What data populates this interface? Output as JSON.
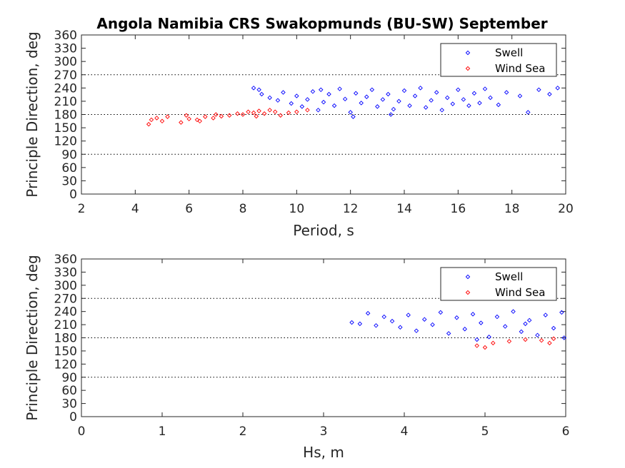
{
  "chart_data": [
    {
      "type": "scatter",
      "title": "Angola Namibia CRS Swakopmunds (BU-SW) September",
      "xlabel": "Period, s",
      "ylabel": "Principle Direction, deg",
      "xlim": [
        2,
        20
      ],
      "ylim": [
        0,
        360
      ],
      "xticks": [
        2,
        4,
        6,
        8,
        10,
        12,
        14,
        16,
        18,
        20
      ],
      "yticks": [
        0,
        30,
        60,
        90,
        120,
        150,
        180,
        210,
        240,
        270,
        300,
        330,
        360
      ],
      "reference_lines": [
        90,
        180,
        270
      ],
      "legend": {
        "position": "top-right",
        "entries": [
          "Swell",
          "Wind Sea"
        ]
      },
      "series": [
        {
          "name": "Swell",
          "color": "#0000ff",
          "marker": "diamond",
          "points": [
            [
              8.4,
              240
            ],
            [
              8.6,
              236
            ],
            [
              8.7,
              226
            ],
            [
              9.0,
              218
            ],
            [
              9.3,
              212
            ],
            [
              9.5,
              230
            ],
            [
              9.8,
              205
            ],
            [
              10.0,
              222
            ],
            [
              10.2,
              198
            ],
            [
              10.4,
              214
            ],
            [
              10.6,
              232
            ],
            [
              10.8,
              190
            ],
            [
              11.0,
              208
            ],
            [
              11.2,
              226
            ],
            [
              11.4,
              200
            ],
            [
              11.6,
              238
            ],
            [
              11.8,
              215
            ],
            [
              12.0,
              185
            ],
            [
              12.2,
              228
            ],
            [
              12.4,
              206
            ],
            [
              12.6,
              220
            ],
            [
              12.8,
              236
            ],
            [
              13.0,
              198
            ],
            [
              13.2,
              214
            ],
            [
              13.4,
              226
            ],
            [
              13.6,
              192
            ],
            [
              13.8,
              210
            ],
            [
              14.0,
              234
            ],
            [
              14.2,
              200
            ],
            [
              14.4,
              222
            ],
            [
              14.6,
              240
            ],
            [
              14.8,
              196
            ],
            [
              15.0,
              212
            ],
            [
              15.2,
              230
            ],
            [
              15.4,
              190
            ],
            [
              15.6,
              218
            ],
            [
              15.8,
              204
            ],
            [
              16.0,
              236
            ],
            [
              16.2,
              214
            ],
            [
              16.4,
              200
            ],
            [
              16.6,
              228
            ],
            [
              16.8,
              206
            ],
            [
              17.0,
              238
            ],
            [
              17.2,
              218
            ],
            [
              17.5,
              202
            ],
            [
              17.8,
              230
            ],
            [
              18.3,
              222
            ],
            [
              18.6,
              185
            ],
            [
              19.0,
              236
            ],
            [
              19.4,
              226
            ],
            [
              19.7,
              240
            ],
            [
              12.1,
              175
            ],
            [
              13.5,
              180
            ],
            [
              10.9,
              236
            ]
          ]
        },
        {
          "name": "Wind Sea",
          "color": "#ff0000",
          "marker": "diamond",
          "points": [
            [
              4.5,
              158
            ],
            [
              4.6,
              168
            ],
            [
              4.8,
              172
            ],
            [
              5.0,
              165
            ],
            [
              5.2,
              175
            ],
            [
              5.7,
              162
            ],
            [
              6.0,
              170
            ],
            [
              6.3,
              168
            ],
            [
              6.6,
              175
            ],
            [
              6.9,
              172
            ],
            [
              7.2,
              176
            ],
            [
              7.5,
              178
            ],
            [
              7.8,
              182
            ],
            [
              8.0,
              180
            ],
            [
              8.2,
              186
            ],
            [
              8.4,
              184
            ],
            [
              8.6,
              188
            ],
            [
              8.8,
              182
            ],
            [
              9.0,
              190
            ],
            [
              9.2,
              186
            ],
            [
              9.4,
              178
            ],
            [
              9.7,
              184
            ],
            [
              10.0,
              186
            ],
            [
              10.4,
              190
            ],
            [
              6.4,
              165
            ],
            [
              7.0,
              180
            ],
            [
              8.5,
              176
            ],
            [
              5.9,
              178
            ]
          ]
        }
      ]
    },
    {
      "type": "scatter",
      "title": "",
      "xlabel": "Hs, m",
      "ylabel": "Principle Direction, deg",
      "xlim": [
        0,
        6
      ],
      "ylim": [
        0,
        360
      ],
      "xticks": [
        0,
        1,
        2,
        3,
        4,
        5,
        6
      ],
      "yticks": [
        0,
        30,
        60,
        90,
        120,
        150,
        180,
        210,
        240,
        270,
        300,
        330,
        360
      ],
      "reference_lines": [
        90,
        180,
        270
      ],
      "legend": {
        "position": "top-right",
        "entries": [
          "Swell",
          "Wind Sea"
        ]
      },
      "series": [
        {
          "name": "Swell",
          "color": "#0000ff",
          "marker": "diamond",
          "points": [
            [
              3.35,
              215
            ],
            [
              3.45,
              212
            ],
            [
              3.55,
              236
            ],
            [
              3.65,
              208
            ],
            [
              3.75,
              228
            ],
            [
              3.85,
              218
            ],
            [
              3.95,
              204
            ],
            [
              4.05,
              232
            ],
            [
              4.15,
              196
            ],
            [
              4.25,
              222
            ],
            [
              4.35,
              210
            ],
            [
              4.45,
              238
            ],
            [
              4.55,
              190
            ],
            [
              4.65,
              226
            ],
            [
              4.75,
              200
            ],
            [
              4.85,
              234
            ],
            [
              4.95,
              214
            ],
            [
              5.05,
              182
            ],
            [
              5.15,
              228
            ],
            [
              5.25,
              206
            ],
            [
              5.35,
              240
            ],
            [
              5.45,
              194
            ],
            [
              5.55,
              220
            ],
            [
              5.65,
              186
            ],
            [
              5.75,
              232
            ],
            [
              5.85,
              202
            ],
            [
              5.95,
              238
            ],
            [
              5.98,
              180
            ],
            [
              5.5,
              212
            ],
            [
              4.9,
              176
            ]
          ]
        },
        {
          "name": "Wind Sea",
          "color": "#ff0000",
          "marker": "diamond",
          "points": [
            [
              4.9,
              162
            ],
            [
              5.0,
              158
            ],
            [
              5.1,
              168
            ],
            [
              5.3,
              172
            ],
            [
              5.5,
              176
            ],
            [
              5.7,
              174
            ],
            [
              5.8,
              168
            ],
            [
              5.85,
              178
            ]
          ]
        }
      ]
    }
  ]
}
